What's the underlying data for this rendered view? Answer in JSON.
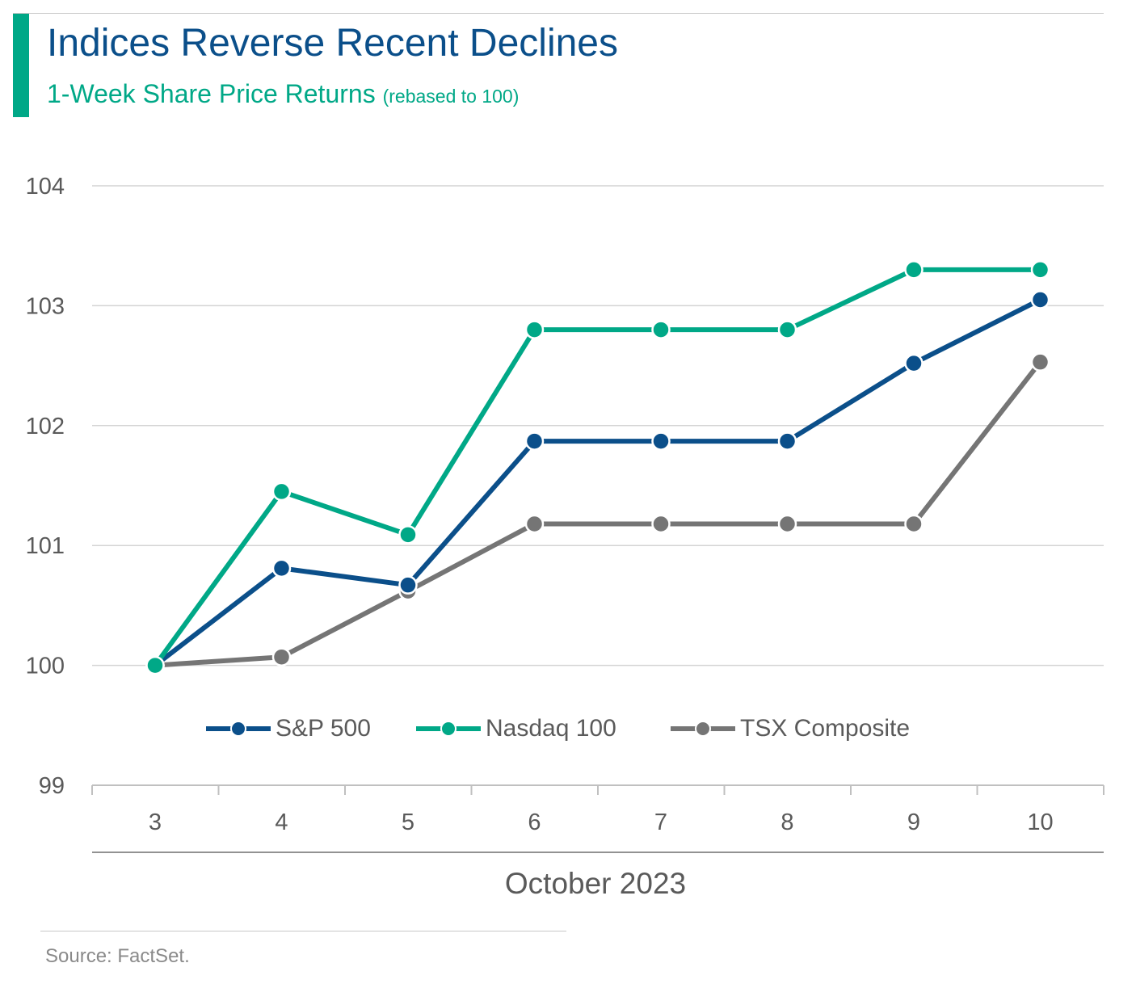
{
  "header": {
    "title": "Indices Reverse Recent Declines",
    "subtitle": "1-Week Share Price Returns",
    "subtitle_note": "(rebased to 100)"
  },
  "footer": {
    "source": "Source: FactSet."
  },
  "chart_data": {
    "type": "line",
    "title": "Indices Reverse Recent Declines",
    "subtitle": "1-Week Share Price Returns (rebased to 100)",
    "xlabel": "October 2023",
    "ylabel": "",
    "categories": [
      "3",
      "4",
      "5",
      "6",
      "7",
      "8",
      "9",
      "10"
    ],
    "ylim": [
      99,
      104
    ],
    "yticks": [
      "99",
      "100",
      "101",
      "102",
      "103",
      "104"
    ],
    "grid": true,
    "legend_position": "inside-bottom",
    "series": [
      {
        "name": "S&P 500",
        "color": "#0b4f8a",
        "values": [
          100,
          100.81,
          100.67,
          101.87,
          101.87,
          101.87,
          102.52,
          103.05
        ]
      },
      {
        "name": "Nasdaq 100",
        "color": "#00a887",
        "values": [
          100,
          101.45,
          101.09,
          102.8,
          102.8,
          102.8,
          103.3,
          103.3
        ]
      },
      {
        "name": "TSX Composite",
        "color": "#757575",
        "values": [
          100,
          100.07,
          100.62,
          101.18,
          101.18,
          101.18,
          101.18,
          102.53
        ]
      }
    ]
  }
}
